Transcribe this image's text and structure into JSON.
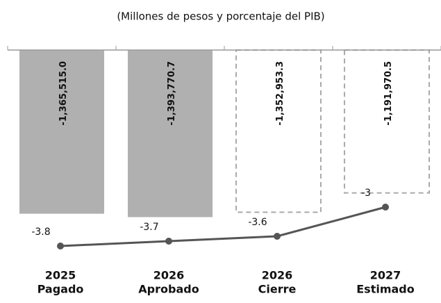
{
  "chart_data": {
    "type": "bar",
    "title": "(Millones de pesos y porcentaje del PIB)",
    "categories": [
      [
        "2025",
        "Pagado"
      ],
      [
        "2026",
        "Aprobado"
      ],
      [
        "2026",
        "Cierre"
      ],
      [
        "2027",
        "Estimado"
      ]
    ],
    "bar_styles": [
      "solid",
      "solid",
      "dashed",
      "dashed"
    ],
    "series": [
      {
        "type": "bar",
        "color": "#b0b0b0",
        "values": [
          -1365515.0,
          -1393770.7,
          -1352953.3,
          -1191970.5
        ],
        "value_labels": [
          "-1,365,515.0",
          "-1,393,770.7",
          "-1,352,953.3",
          "-1,191,970.5"
        ]
      },
      {
        "type": "line",
        "axis": "y2",
        "color": "#555555",
        "values": [
          -3.8,
          -3.7,
          -3.6,
          -3.0
        ]
      }
    ],
    "ylim": [
      -1600000,
      0
    ],
    "y2lim": [
      -4.0,
      -2.5
    ]
  }
}
